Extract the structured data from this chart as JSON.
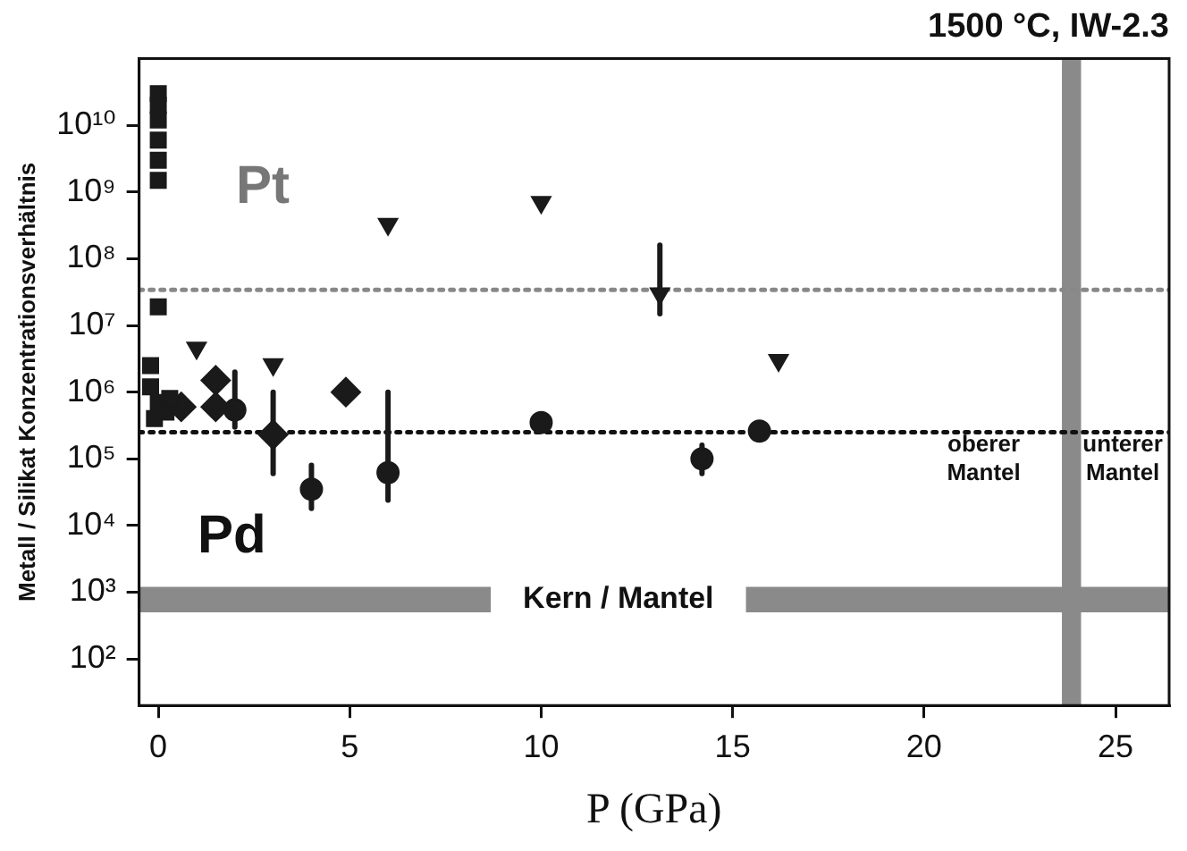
{
  "chart_data": {
    "type": "scatter",
    "title": "1500 °C, IW-2.3",
    "xlabel": "P (GPa)",
    "ylabel": "Metall / Silikat Konzentrationsverhältnis",
    "log": "y",
    "grid": false,
    "legend": false,
    "xlim": [
      -0.5,
      26.4
    ],
    "xticks": [
      0,
      5,
      10,
      15,
      20,
      25
    ],
    "ylim": [
      20,
      100000000000
    ],
    "yticks": [
      {
        "value": 100,
        "label": "10²"
      },
      {
        "value": 1000,
        "label": "10³"
      },
      {
        "value": 10000,
        "label": "10⁴"
      },
      {
        "value": 100000,
        "label": "10⁵"
      },
      {
        "value": 1000000,
        "label": "10⁶"
      },
      {
        "value": 10000000,
        "label": "10⁷"
      },
      {
        "value": 100000000,
        "label": "10⁸"
      },
      {
        "value": 1000000000,
        "label": "10⁹"
      },
      {
        "value": 10000000000,
        "label": "10¹⁰"
      }
    ],
    "series": [
      {
        "color": "#1a1a1a",
        "marker": "square",
        "x": [
          -0.2,
          -0.2,
          0,
          0.2,
          -0.1,
          0.3,
          0,
          0,
          0,
          0,
          0,
          0,
          0
        ],
        "values": [
          2500000,
          1200000,
          700000,
          500000,
          400000,
          800000,
          19000000,
          1500000000,
          3000000000,
          6000000000,
          12000000000,
          20000000000,
          30000000000
        ]
      },
      {
        "color": "#1a1a1a",
        "marker": "diamond",
        "x": [
          0.6,
          1.5,
          1.5,
          3.0,
          4.9
        ],
        "values": [
          600000,
          1500000,
          600000,
          230000,
          1000000
        ],
        "errors": [
          null,
          null,
          null,
          [
            60000,
            1000000
          ],
          null
        ]
      },
      {
        "color": "#1a1a1a",
        "marker": "circle",
        "x": [
          2.0,
          4.0,
          6.0,
          10.0,
          14.2,
          15.7
        ],
        "values": [
          540000,
          35000,
          62000,
          350000,
          100000,
          260000
        ],
        "errors": [
          [
            300000,
            2000000
          ],
          [
            18000,
            80000
          ],
          [
            24000,
            1000000
          ],
          null,
          [
            60000,
            160000
          ],
          null
        ]
      },
      {
        "color": "#1a1a1a",
        "marker": "triangle",
        "x": [
          1.0,
          3.0,
          6.0,
          10.0,
          13.1,
          16.2
        ],
        "values": [
          4600000,
          2600000,
          330000000,
          700000000,
          30000000,
          3000000
        ],
        "errors": [
          null,
          null,
          null,
          null,
          [
            15000000,
            160000000
          ],
          null
        ]
      }
    ],
    "ref_lines": [
      {
        "axis": "y",
        "value": 34000000,
        "color": "#888888",
        "line_style": "dotted"
      },
      {
        "axis": "y",
        "value": 250000,
        "color": "#111111",
        "line_style": "dotted"
      }
    ],
    "bands": [
      {
        "axis": "y",
        "from": 500,
        "to": 1200,
        "label": "Kern / Mantel",
        "color": "#8a8a8a"
      },
      {
        "axis": "x",
        "from": 23.6,
        "to": 24.1,
        "color": "#8a8a8a"
      }
    ],
    "annotations": [
      "Pt",
      "Pd",
      "oberer\nMantel",
      "unterer\nMantel"
    ]
  }
}
